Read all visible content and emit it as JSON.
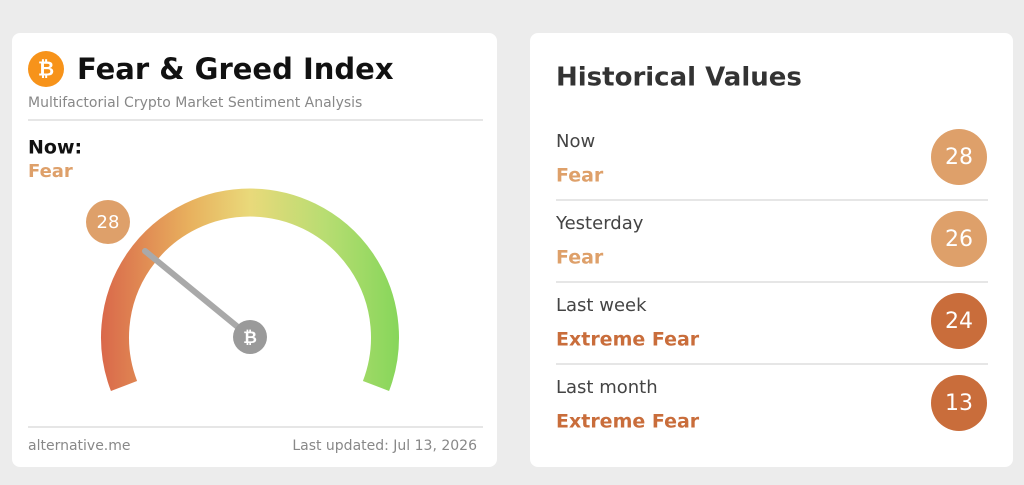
{
  "index_card": {
    "title": "Fear & Greed Index",
    "subtitle": "Multifactorial Crypto Market Sentiment Analysis",
    "now_label": "Now:",
    "now_status": "Fear",
    "now_value": 28,
    "color": "#dea06a",
    "source": "alternative.me",
    "last_updated": "Last updated: Jul 13, 2026"
  },
  "historical": {
    "title": "Historical Values",
    "rows": [
      {
        "label": "Now",
        "status": "Fear",
        "value": 28,
        "color": "#dea06a"
      },
      {
        "label": "Yesterday",
        "status": "Fear",
        "value": 26,
        "color": "#dea06a"
      },
      {
        "label": "Last week",
        "status": "Extreme Fear",
        "value": 24,
        "color": "#c96d3b"
      },
      {
        "label": "Last month",
        "status": "Extreme Fear",
        "value": 13,
        "color": "#c96d3b"
      }
    ]
  }
}
